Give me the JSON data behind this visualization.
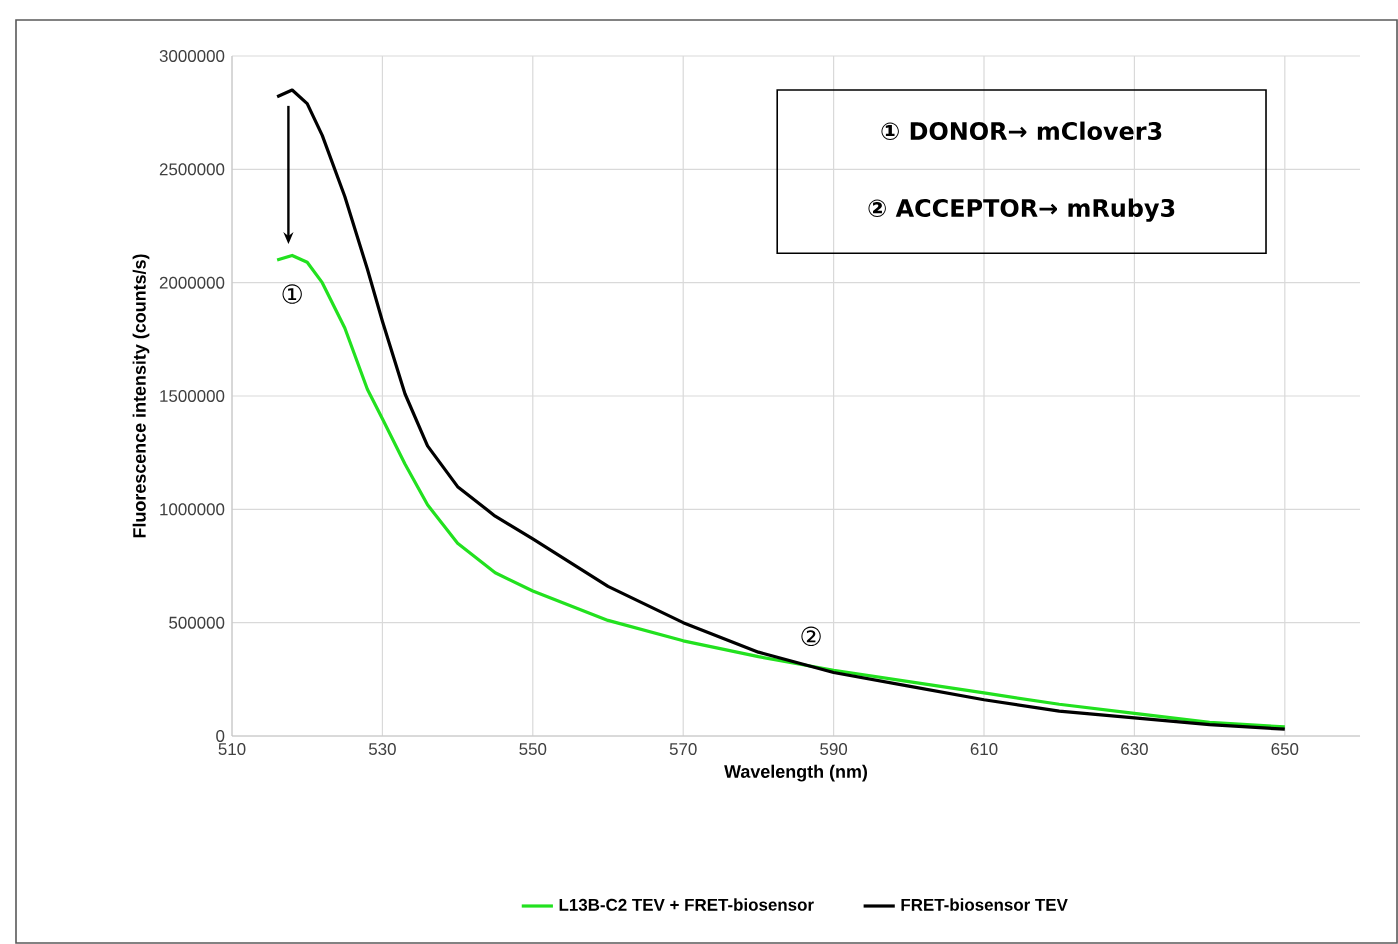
{
  "chart_data": {
    "type": "line",
    "xlabel": "Wavelength (nm)",
    "ylabel": "Fluorescence intensity (counts/s)",
    "xlim": [
      510,
      660
    ],
    "xticks": [
      510,
      530,
      550,
      570,
      590,
      610,
      630,
      650
    ],
    "ylim": [
      0,
      3000000
    ],
    "yticks": [
      0,
      500000,
      1000000,
      1500000,
      2000000,
      2500000,
      3000000
    ],
    "grid": true,
    "legend": "bottom",
    "marker": "none",
    "line_style": "solid",
    "x": [
      516,
      518,
      520,
      522,
      525,
      528,
      530,
      533,
      536,
      540,
      545,
      550,
      560,
      570,
      580,
      590,
      600,
      610,
      620,
      630,
      640,
      650
    ],
    "series": [
      {
        "name": "L13B-C2 TEV + FRET-biosensor",
        "color": "#22e11f",
        "values": [
          2100000,
          2120000,
          2090000,
          2000000,
          1800000,
          1530000,
          1400000,
          1200000,
          1020000,
          850000,
          720000,
          640000,
          510000,
          420000,
          350000,
          290000,
          240000,
          190000,
          140000,
          100000,
          60000,
          40000
        ]
      },
      {
        "name": "FRET-biosensor TEV",
        "color": "#000000",
        "values": [
          2820000,
          2850000,
          2790000,
          2650000,
          2380000,
          2060000,
          1830000,
          1510000,
          1280000,
          1100000,
          970000,
          870000,
          660000,
          500000,
          370000,
          280000,
          220000,
          160000,
          110000,
          80000,
          50000,
          30000
        ]
      }
    ],
    "annotations": [
      "①",
      "②",
      "① DONOR→ mClover3",
      "② ACCEPTOR→ mRuby3"
    ]
  }
}
